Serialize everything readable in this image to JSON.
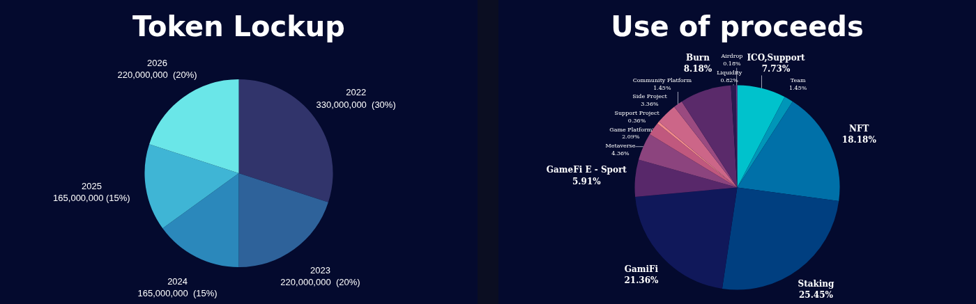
{
  "chart_data": [
    {
      "type": "pie",
      "title": "Token Lockup",
      "categories": [
        "2022",
        "2023",
        "2024",
        "2025",
        "2026"
      ],
      "values": [
        330000000,
        220000000,
        165000000,
        165000000,
        220000000
      ],
      "value_labels": [
        "330,000,000  (30%)",
        "220,000,000  (20%)",
        "165,000,000  (15%)",
        "165,000,000 (15%)",
        "220,000,000  (20%)"
      ],
      "colors": [
        "#31346b",
        "#2e629a",
        "#2b88bb",
        "#3fb5d5",
        "#6ae6e8"
      ]
    },
    {
      "type": "pie",
      "title": "Use of proceeds",
      "categories": [
        "ICO,Support",
        "Team",
        "NFT",
        "Staking",
        "GamiFi",
        "GameFi E - Sport",
        "Metaverse",
        "Game Platform",
        "Support Project",
        "Side Project",
        "Community Platform",
        "Burn",
        "Liquidity",
        "Airdrop"
      ],
      "values": [
        7.73,
        1.45,
        18.18,
        25.45,
        21.36,
        5.91,
        4.36,
        2.09,
        0.36,
        3.36,
        1.45,
        8.18,
        0.82,
        0.18
      ],
      "value_labels": [
        "7.73%",
        "1.45%",
        "18.18%",
        "25.45%",
        "21.36%",
        "5.91%",
        "4.36%",
        "2.09%",
        "0.36%",
        "3.36%",
        "1.45%",
        "8.18%",
        "0.82%",
        "0.18%"
      ],
      "colors": [
        "#00c2cc",
        "#0096b8",
        "#0070a8",
        "#003f80",
        "#10185a",
        "#58286a",
        "#8c447e",
        "#c0587e",
        "#f28a8a",
        "#cc6688",
        "#9a4a80",
        "#5a2a6a",
        "#2a1a50",
        "#6a3a8a"
      ]
    }
  ]
}
